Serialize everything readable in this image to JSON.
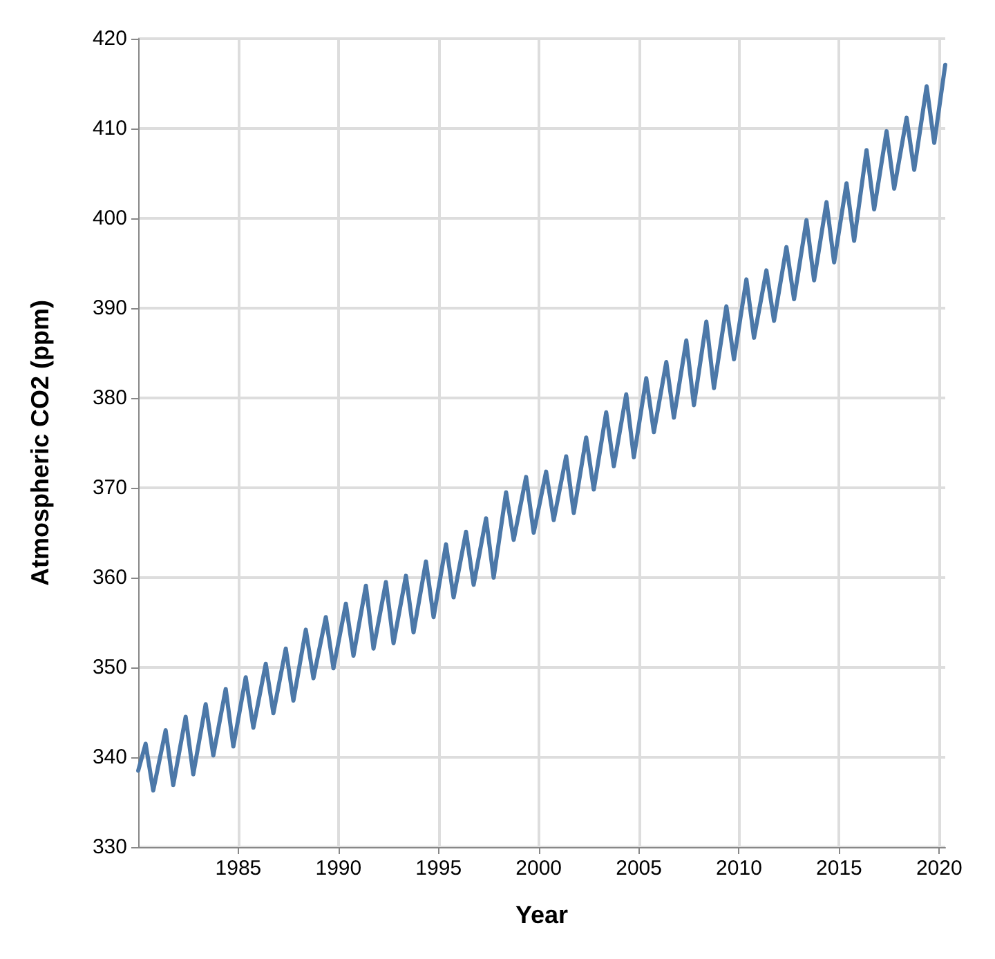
{
  "chart_data": {
    "type": "line",
    "xlabel": "Year",
    "ylabel": "Atmospheric CO2 (ppm)",
    "x": [
      1980.0,
      1980.37,
      1980.75,
      1981.37,
      1981.75,
      1982.37,
      1982.75,
      1983.37,
      1983.75,
      1984.37,
      1984.75,
      1985.37,
      1985.75,
      1986.37,
      1986.75,
      1987.37,
      1987.75,
      1988.37,
      1988.75,
      1989.37,
      1989.75,
      1990.37,
      1990.75,
      1991.37,
      1991.75,
      1992.37,
      1992.75,
      1993.37,
      1993.75,
      1994.37,
      1994.75,
      1995.37,
      1995.75,
      1996.37,
      1996.75,
      1997.37,
      1997.75,
      1998.37,
      1998.75,
      1999.37,
      1999.75,
      2000.37,
      2000.75,
      2001.37,
      2001.75,
      2002.37,
      2002.75,
      2003.37,
      2003.75,
      2004.37,
      2004.75,
      2005.37,
      2005.75,
      2006.37,
      2006.75,
      2007.37,
      2007.75,
      2008.37,
      2008.75,
      2009.37,
      2009.75,
      2010.37,
      2010.75,
      2011.37,
      2011.75,
      2012.37,
      2012.75,
      2013.37,
      2013.75,
      2014.37,
      2014.75,
      2015.37,
      2015.75,
      2016.37,
      2016.75,
      2017.37,
      2017.75,
      2018.37,
      2018.75,
      2019.37,
      2019.75,
      2020.3
    ],
    "series": [
      {
        "color": "#4c78a8",
        "values": [
          338.5,
          341.5,
          336.3,
          343.0,
          336.9,
          344.5,
          338.1,
          345.9,
          340.2,
          347.6,
          341.2,
          348.9,
          343.3,
          350.4,
          344.9,
          352.1,
          346.3,
          354.2,
          348.8,
          355.6,
          349.9,
          357.1,
          351.3,
          359.1,
          352.1,
          359.5,
          352.7,
          360.2,
          353.9,
          361.8,
          355.6,
          363.7,
          357.8,
          365.1,
          359.2,
          366.6,
          360.0,
          369.5,
          364.2,
          371.2,
          365.0,
          371.8,
          366.4,
          373.5,
          367.2,
          375.6,
          369.8,
          378.4,
          372.4,
          380.4,
          373.4,
          382.2,
          376.2,
          384.0,
          377.8,
          386.4,
          379.2,
          388.5,
          381.1,
          390.2,
          384.3,
          393.2,
          386.7,
          394.2,
          388.6,
          396.8,
          391.0,
          399.8,
          393.1,
          401.8,
          395.1,
          403.9,
          397.5,
          407.6,
          401.0,
          409.7,
          403.3,
          411.2,
          405.4,
          414.7,
          408.4,
          417.1
        ]
      }
    ],
    "xlim": [
      1980,
      2020.3
    ],
    "xticks": [
      1985,
      1990,
      1995,
      2000,
      2005,
      2010,
      2015,
      2020
    ],
    "ylim": [
      330,
      420
    ],
    "yticks": [
      330,
      340,
      350,
      360,
      370,
      380,
      390,
      400,
      410,
      420
    ],
    "grid": true,
    "marker": "none",
    "line_style": "solid"
  }
}
